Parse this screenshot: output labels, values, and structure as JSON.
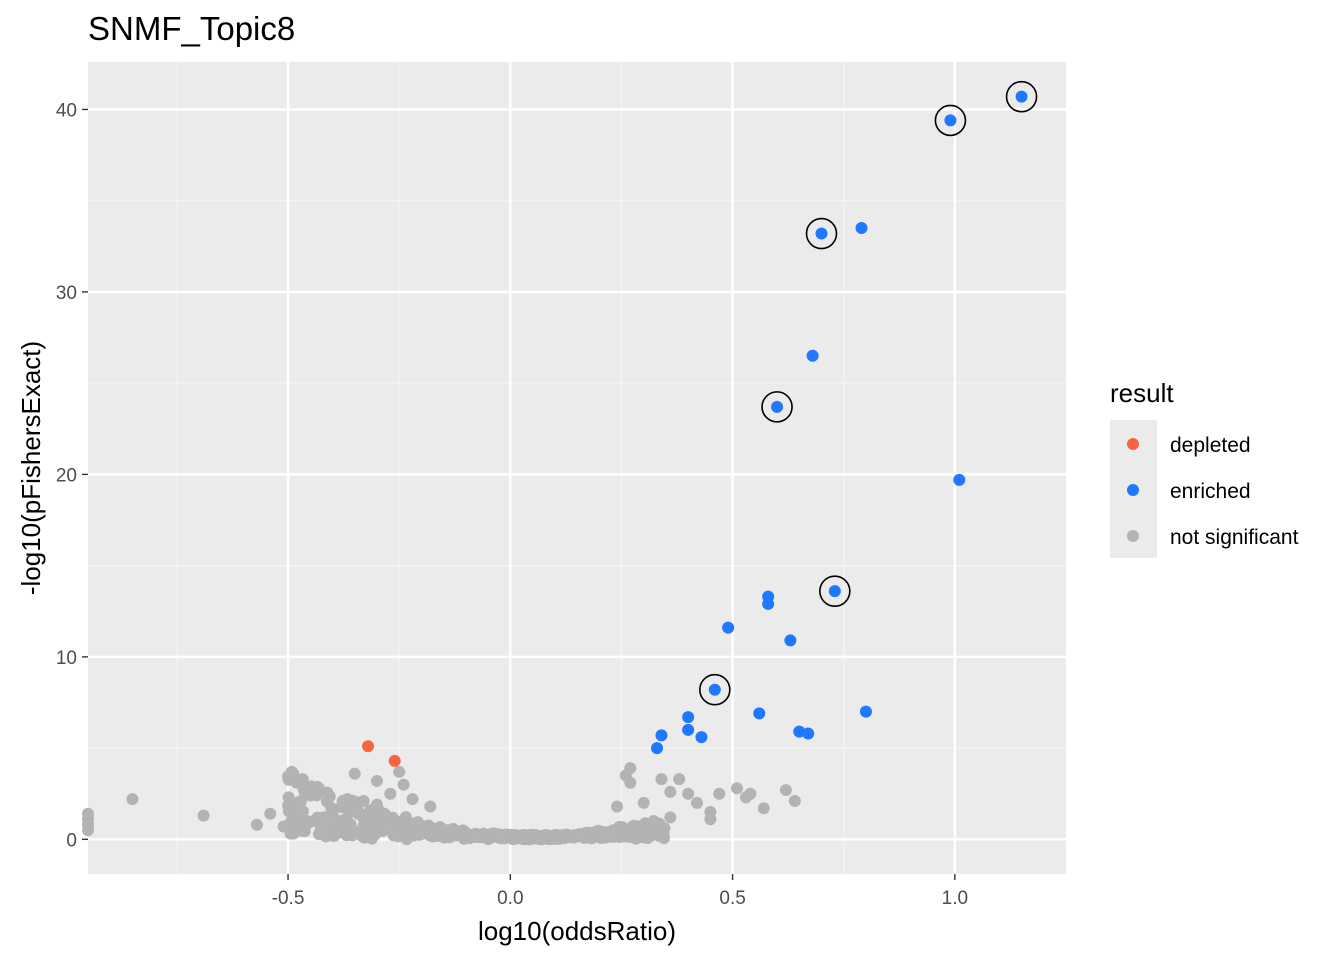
{
  "chart_data": {
    "type": "scatter",
    "title": "SNMF_Topic8",
    "xlabel": "log10(oddsRatio)",
    "ylabel": "-log10(pFishersExact)",
    "xlim": [
      -0.95,
      1.25
    ],
    "ylim": [
      -1.9,
      42.6
    ],
    "x_ticks": [
      -0.5,
      0.0,
      0.5,
      1.0
    ],
    "x_tick_labels": [
      "-0.5",
      "0.0",
      "0.5",
      "1.0"
    ],
    "y_ticks": [
      0,
      10,
      20,
      30,
      40
    ],
    "y_tick_labels": [
      "0",
      "10",
      "20",
      "30",
      "40"
    ],
    "grid": true,
    "panel_background": "#ebebeb",
    "legend": {
      "title": "result",
      "position": "right",
      "entries": [
        {
          "label": "depleted",
          "color": "#f8643f"
        },
        {
          "label": "enriched",
          "color": "#1f78ff"
        },
        {
          "label": "not significant",
          "color": "#b3b3b3"
        }
      ]
    },
    "series": [
      {
        "name": "depleted",
        "color": "#f8643f",
        "points": [
          [
            -0.32,
            5.1
          ],
          [
            -0.26,
            4.3
          ]
        ]
      },
      {
        "name": "enriched",
        "color": "#1f78ff",
        "points": [
          [
            1.15,
            40.7
          ],
          [
            0.99,
            39.4
          ],
          [
            0.7,
            33.2
          ],
          [
            0.79,
            33.5
          ],
          [
            0.68,
            26.5
          ],
          [
            0.6,
            23.7
          ],
          [
            1.01,
            19.7
          ],
          [
            0.73,
            13.6
          ],
          [
            0.58,
            13.3
          ],
          [
            0.58,
            12.9
          ],
          [
            0.49,
            11.6
          ],
          [
            0.63,
            10.9
          ],
          [
            0.46,
            8.2
          ],
          [
            0.56,
            6.9
          ],
          [
            0.8,
            7.0
          ],
          [
            0.4,
            6.7
          ],
          [
            0.34,
            5.7
          ],
          [
            0.4,
            6.0
          ],
          [
            0.43,
            5.6
          ],
          [
            0.65,
            5.9
          ],
          [
            0.67,
            5.8
          ],
          [
            0.33,
            5.0
          ]
        ]
      },
      {
        "name": "not significant",
        "color": "#b3b3b3",
        "points": [
          [
            -0.95,
            1.4
          ],
          [
            -0.95,
            1.1
          ],
          [
            -0.95,
            0.8
          ],
          [
            -0.95,
            0.5
          ],
          [
            -0.85,
            2.2
          ],
          [
            -0.69,
            1.3
          ],
          [
            -0.57,
            0.8
          ],
          [
            -0.54,
            1.4
          ],
          [
            -0.51,
            0.7
          ],
          [
            -0.46,
            2.9
          ],
          [
            -0.45,
            2.4
          ],
          [
            -0.35,
            3.6
          ],
          [
            -0.3,
            3.2
          ],
          [
            -0.25,
            3.7
          ],
          [
            -0.24,
            3.0
          ],
          [
            -0.27,
            2.5
          ],
          [
            -0.3,
            1.9
          ],
          [
            -0.33,
            2.1
          ],
          [
            -0.36,
            1.5
          ],
          [
            -0.4,
            1.4
          ],
          [
            -0.42,
            1.2
          ],
          [
            -0.22,
            2.2
          ],
          [
            -0.18,
            1.8
          ],
          [
            0.27,
            3.9
          ],
          [
            0.26,
            3.5
          ],
          [
            0.27,
            3.1
          ],
          [
            0.34,
            3.3
          ],
          [
            0.38,
            3.3
          ],
          [
            0.36,
            2.6
          ],
          [
            0.4,
            2.5
          ],
          [
            0.42,
            2.0
          ],
          [
            0.47,
            2.5
          ],
          [
            0.51,
            2.8
          ],
          [
            0.53,
            2.3
          ],
          [
            0.54,
            2.5
          ],
          [
            0.62,
            2.7
          ],
          [
            0.64,
            2.1
          ],
          [
            0.57,
            1.7
          ],
          [
            0.45,
            1.5
          ],
          [
            0.3,
            2.0
          ],
          [
            0.24,
            1.8
          ],
          [
            0.45,
            1.1
          ],
          [
            0.36,
            1.2
          ]
        ]
      }
    ],
    "annotations": {
      "circled_points": [
        [
          1.15,
          40.7
        ],
        [
          0.99,
          39.4
        ],
        [
          0.7,
          33.2
        ],
        [
          0.6,
          23.7
        ],
        [
          0.73,
          13.6
        ],
        [
          0.46,
          8.2
        ]
      ]
    },
    "background_cloud": {
      "description_points_count": 520
    }
  }
}
